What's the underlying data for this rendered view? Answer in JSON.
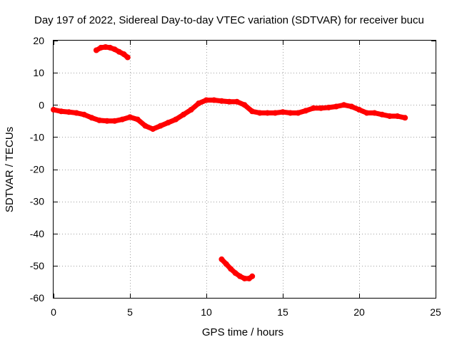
{
  "chart_data": {
    "type": "scatter",
    "title": "Day 197 of 2022, Sidereal Day-to-day VTEC variation (SDTVAR) for receiver bucu",
    "xlabel": "GPS time / hours",
    "ylabel": "SDTVAR / TECUs",
    "xlim": [
      0,
      25
    ],
    "ylim": [
      -60,
      20
    ],
    "xticks": [
      "0",
      "5",
      "10",
      "15",
      "20",
      "25"
    ],
    "yticks": [
      "20",
      "10",
      "0",
      "-10",
      "-20",
      "-30",
      "-40",
      "-50",
      "-60"
    ],
    "grid": true,
    "color": "#ff0000",
    "series": [
      {
        "name": "main-track",
        "x": [
          0.0,
          0.5,
          1.0,
          1.5,
          2.0,
          2.5,
          3.0,
          3.5,
          4.0,
          4.5,
          5.0,
          5.5,
          6.0,
          6.5,
          7.0,
          7.5,
          8.0,
          8.5,
          9.0,
          9.5,
          10.0,
          10.5,
          11.0,
          11.5,
          12.0,
          12.5,
          13.0,
          13.5,
          14.0,
          14.5,
          15.0,
          15.5,
          16.0,
          16.5,
          17.0,
          17.5,
          18.0,
          18.5,
          19.0,
          19.5,
          20.0,
          20.5,
          21.0,
          21.5,
          22.0,
          22.5,
          23.0
        ],
        "y": [
          -1.5,
          -2.0,
          -2.2,
          -2.5,
          -3.0,
          -4.0,
          -4.8,
          -5.0,
          -5.0,
          -4.5,
          -3.8,
          -4.5,
          -6.5,
          -7.5,
          -6.5,
          -5.5,
          -4.5,
          -3.0,
          -1.5,
          0.5,
          1.5,
          1.5,
          1.2,
          1.0,
          1.0,
          0.0,
          -2.0,
          -2.5,
          -2.5,
          -2.5,
          -2.2,
          -2.5,
          -2.5,
          -1.8,
          -1.0,
          -1.0,
          -0.8,
          -0.5,
          0.0,
          -0.5,
          -1.5,
          -2.5,
          -2.5,
          -3.0,
          -3.5,
          -3.5,
          -4.0
        ]
      },
      {
        "name": "upper-arc",
        "x": [
          2.8,
          3.1,
          3.4,
          3.7,
          4.0,
          4.3,
          4.6,
          4.85
        ],
        "y": [
          17.0,
          17.8,
          18.0,
          17.8,
          17.3,
          16.5,
          15.8,
          14.8
        ]
      },
      {
        "name": "lower-arc",
        "x": [
          11.0,
          11.3,
          11.6,
          11.9,
          12.2,
          12.5,
          12.8,
          13.0
        ],
        "y": [
          -48.0,
          -49.5,
          -51.0,
          -52.3,
          -53.3,
          -54.0,
          -54.0,
          -53.3
        ]
      }
    ]
  }
}
